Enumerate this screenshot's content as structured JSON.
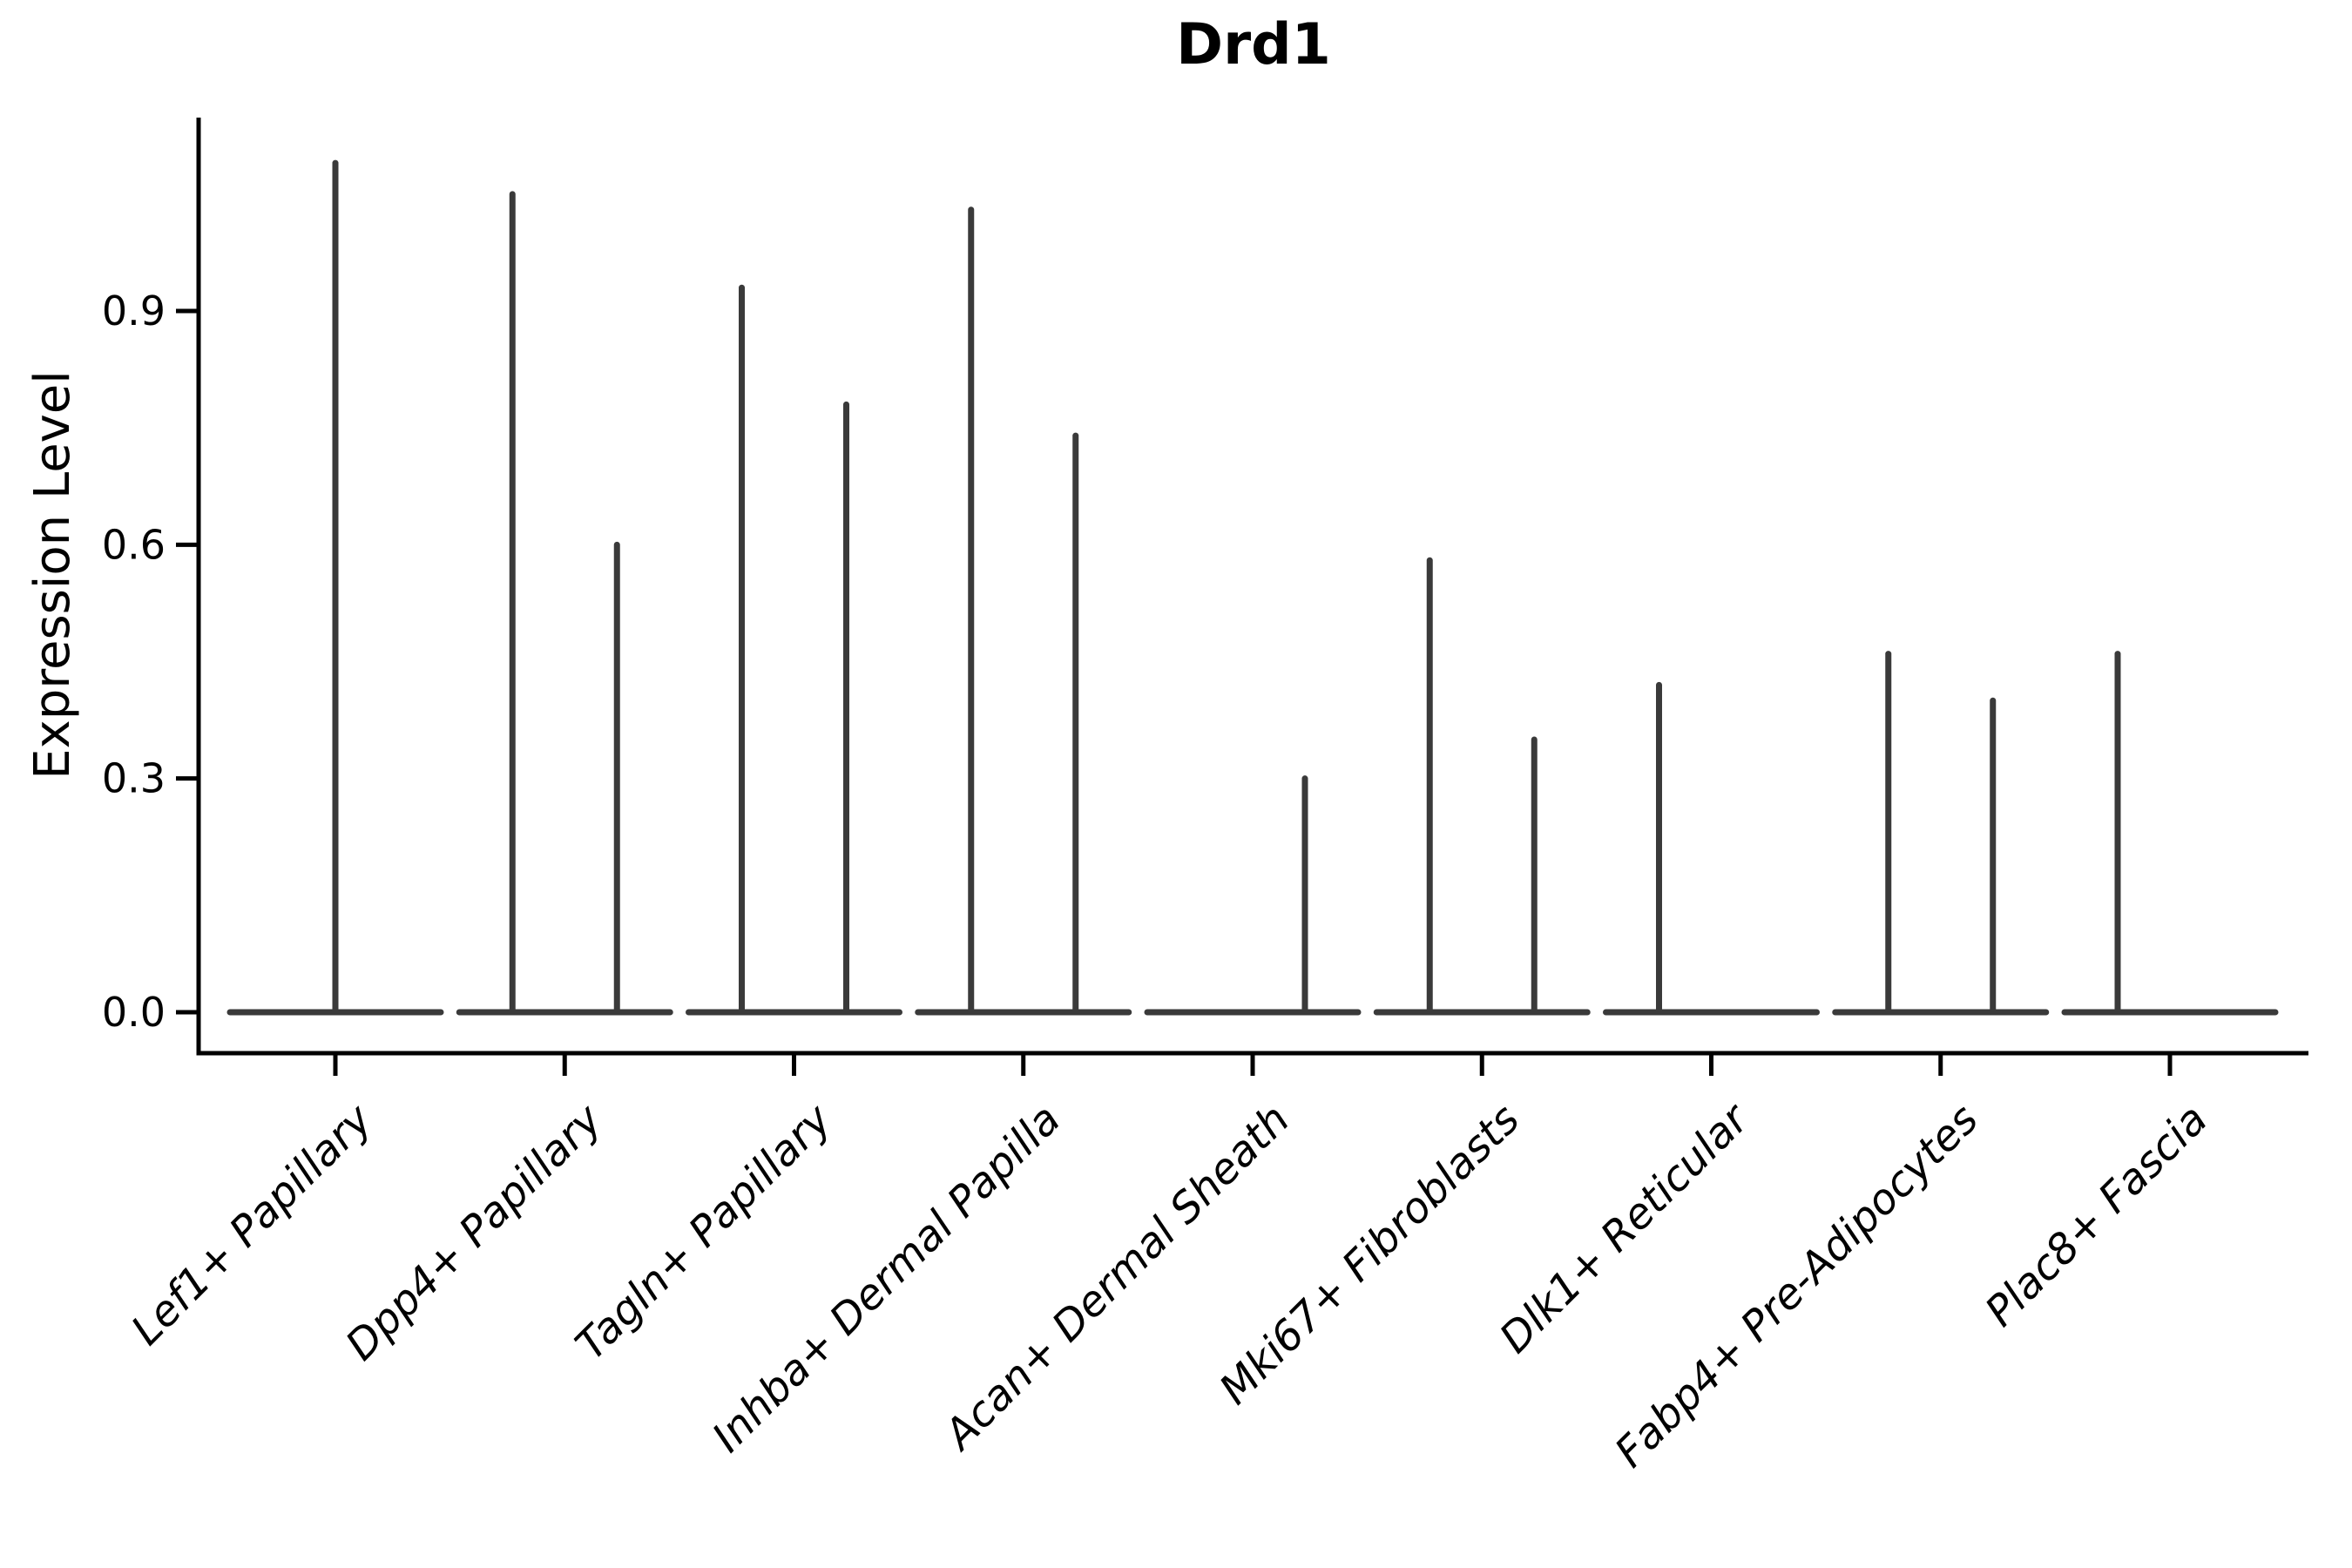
{
  "chart_data": {
    "type": "violin",
    "title": "Drd1",
    "ylabel": "Expression Level",
    "xlabel": "",
    "grid": false,
    "legend": "none",
    "ylim": [
      0,
      1.15
    ],
    "yticks": [
      {
        "value": 0.0,
        "label": "0.0"
      },
      {
        "value": 0.3,
        "label": "0.3"
      },
      {
        "value": 0.6,
        "label": "0.6"
      },
      {
        "value": 0.9,
        "label": "0.9"
      }
    ],
    "violin_color": "#3a3a3a",
    "axis_color": "#000000",
    "categories": [
      {
        "label": "Lef1+ Papillary",
        "violins": [
          {
            "position": "center",
            "max": 1.09
          }
        ]
      },
      {
        "label": "Dpp4+ Papillary",
        "violins": [
          {
            "position": "left",
            "max": 1.05
          },
          {
            "position": "right",
            "max": 0.6
          }
        ]
      },
      {
        "label": "Tagln+ Papillary",
        "violins": [
          {
            "position": "left",
            "max": 0.93
          },
          {
            "position": "right",
            "max": 0.78
          }
        ]
      },
      {
        "label": "Inhba+ Dermal Papilla",
        "violins": [
          {
            "position": "left",
            "max": 1.03
          },
          {
            "position": "right",
            "max": 0.74
          }
        ]
      },
      {
        "label": "Acan+ Dermal Sheath",
        "violins": [
          {
            "position": "left",
            "max": 0.0
          },
          {
            "position": "right",
            "max": 0.3
          }
        ]
      },
      {
        "label": "Mki67+ Fibroblasts",
        "violins": [
          {
            "position": "left",
            "max": 0.58
          },
          {
            "position": "right",
            "max": 0.35
          }
        ]
      },
      {
        "label": "Dlk1+ Reticular",
        "violins": [
          {
            "position": "left",
            "max": 0.42
          },
          {
            "position": "right",
            "max": 0.0
          }
        ]
      },
      {
        "label": "Fabp4+ Pre-Adipocytes",
        "violins": [
          {
            "position": "left",
            "max": 0.46
          },
          {
            "position": "right",
            "max": 0.4
          }
        ]
      },
      {
        "label": "Plac8+ Fascia",
        "violins": [
          {
            "position": "left",
            "max": 0.46
          },
          {
            "position": "right",
            "max": 0.0
          }
        ]
      }
    ]
  }
}
